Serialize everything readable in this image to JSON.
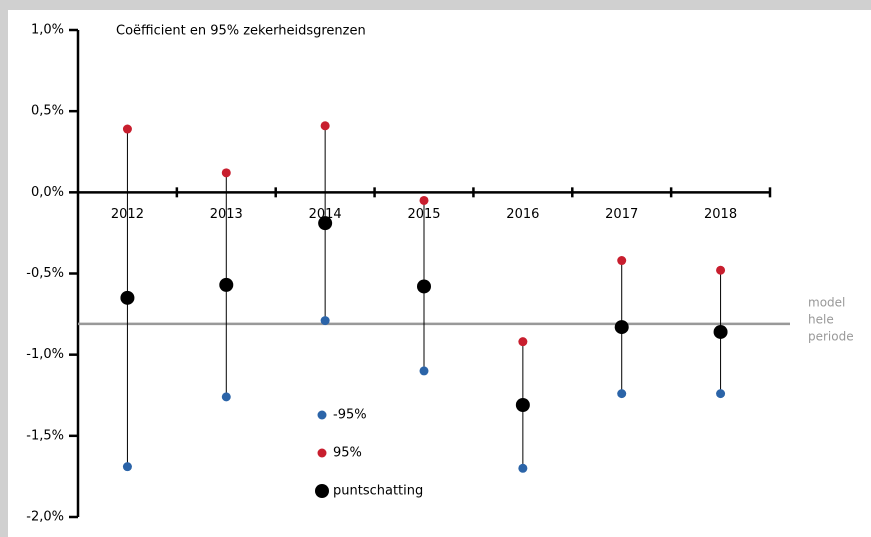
{
  "chart_data": {
    "type": "errorbar",
    "title": "Coëfficient en 95% zekerheidsgrenzen",
    "categories": [
      "2012",
      "2013",
      "2014",
      "2015",
      "2016",
      "2017",
      "2018"
    ],
    "series": [
      {
        "name": "-95%",
        "color": "#2b64a8",
        "values": [
          -1.69,
          -1.26,
          -0.79,
          -1.1,
          -1.7,
          -1.24,
          -1.24
        ]
      },
      {
        "name": "95%",
        "color": "#c81e2e",
        "values": [
          0.39,
          0.12,
          0.41,
          -0.05,
          -0.92,
          -0.42,
          -0.48
        ]
      },
      {
        "name": "puntschatting",
        "color": "#000000",
        "values": [
          -0.65,
          -0.57,
          -0.19,
          -0.58,
          -1.31,
          -0.83,
          -0.86
        ]
      }
    ],
    "reference_line": {
      "value": -0.81,
      "color": "#999999",
      "label": [
        "model",
        "hele",
        "periode"
      ]
    },
    "ylim": [
      -2,
      1
    ],
    "yticks": [
      {
        "value": -2,
        "label": "-2,0%"
      },
      {
        "value": -1.5,
        "label": "-1,5%"
      },
      {
        "value": -1,
        "label": "-1,0%"
      },
      {
        "value": -0.5,
        "label": "-0,5%"
      },
      {
        "value": 0,
        "label": "0,0%"
      },
      {
        "value": 0.5,
        "label": "0,5%"
      },
      {
        "value": 1,
        "label": "1,0%"
      }
    ],
    "grid": false
  }
}
